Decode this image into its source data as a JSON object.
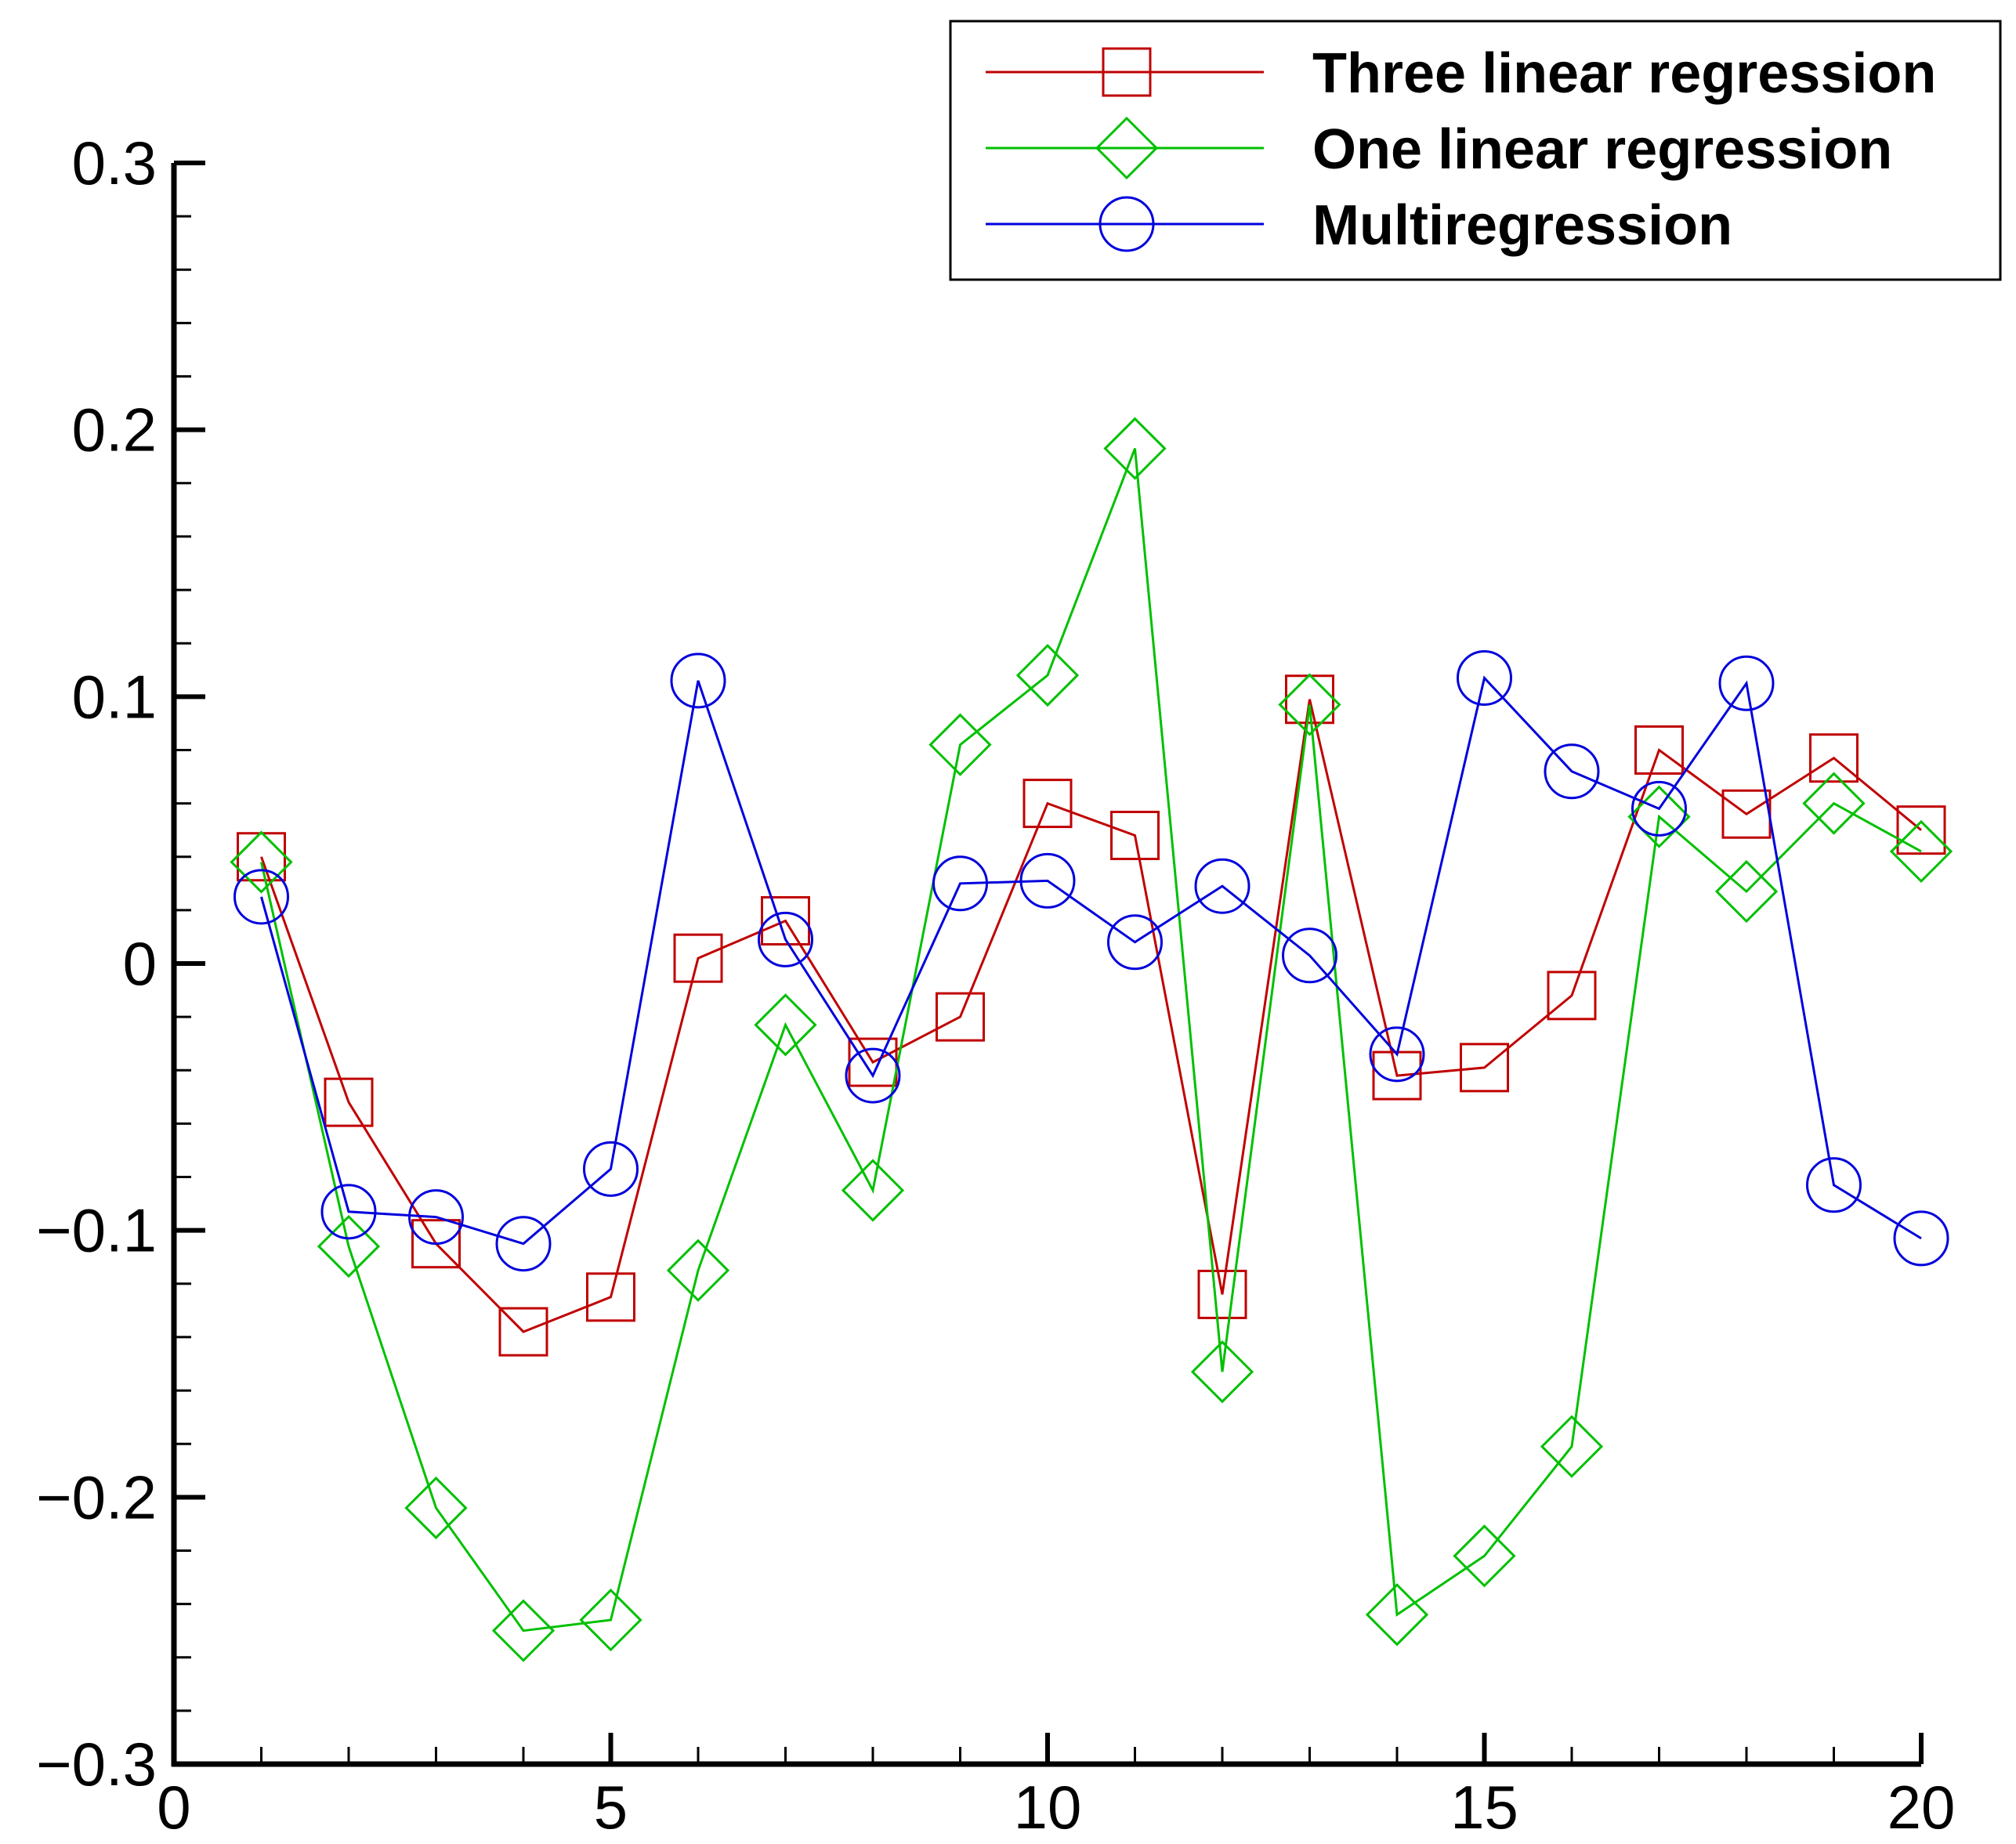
{
  "chart_data": {
    "type": "line",
    "title": "",
    "xlabel": "",
    "ylabel": "",
    "xlim": [
      0,
      20
    ],
    "ylim": [
      -0.3,
      0.3
    ],
    "grid": false,
    "legend_position": "top-right",
    "x": [
      1,
      2,
      3,
      4,
      5,
      6,
      7,
      8,
      9,
      10,
      11,
      12,
      13,
      14,
      15,
      16,
      17,
      18,
      19,
      20
    ],
    "x_ticks": [
      0,
      5,
      10,
      15,
      20
    ],
    "x_tick_labels": [
      "0",
      "5",
      "10",
      "15",
      "20"
    ],
    "y_ticks": [
      -0.3,
      -0.2,
      -0.1,
      0,
      0.1,
      0.2,
      0.3
    ],
    "y_tick_labels": [
      "−0.3",
      "−0.2",
      "−0.1",
      "0",
      "0.1",
      "0.2",
      "0.3"
    ],
    "series": [
      {
        "name": "Three linear regression",
        "color": "#c00000",
        "marker": "square",
        "values": [
          0.04,
          -0.052,
          -0.105,
          -0.138,
          -0.125,
          0.002,
          0.016,
          -0.037,
          -0.02,
          0.06,
          0.048,
          -0.124,
          0.099,
          -0.042,
          -0.039,
          -0.012,
          0.08,
          0.056,
          0.077,
          0.05
        ]
      },
      {
        "name": "One linear regression",
        "color": "#00c000",
        "marker": "diamond",
        "values": [
          0.038,
          -0.106,
          -0.204,
          -0.25,
          -0.246,
          -0.115,
          -0.023,
          -0.085,
          0.082,
          0.108,
          0.193,
          -0.153,
          0.097,
          -0.244,
          -0.222,
          -0.181,
          0.055,
          0.027,
          0.06,
          0.042
        ]
      },
      {
        "name": "Multiregression",
        "color": "#0000dd",
        "marker": "circle",
        "values": [
          0.025,
          -0.093,
          -0.095,
          -0.105,
          -0.077,
          0.106,
          0.009,
          -0.042,
          0.03,
          0.031,
          0.008,
          0.029,
          0.003,
          -0.034,
          0.107,
          0.072,
          0.058,
          0.105,
          -0.083,
          -0.103
        ]
      }
    ]
  }
}
